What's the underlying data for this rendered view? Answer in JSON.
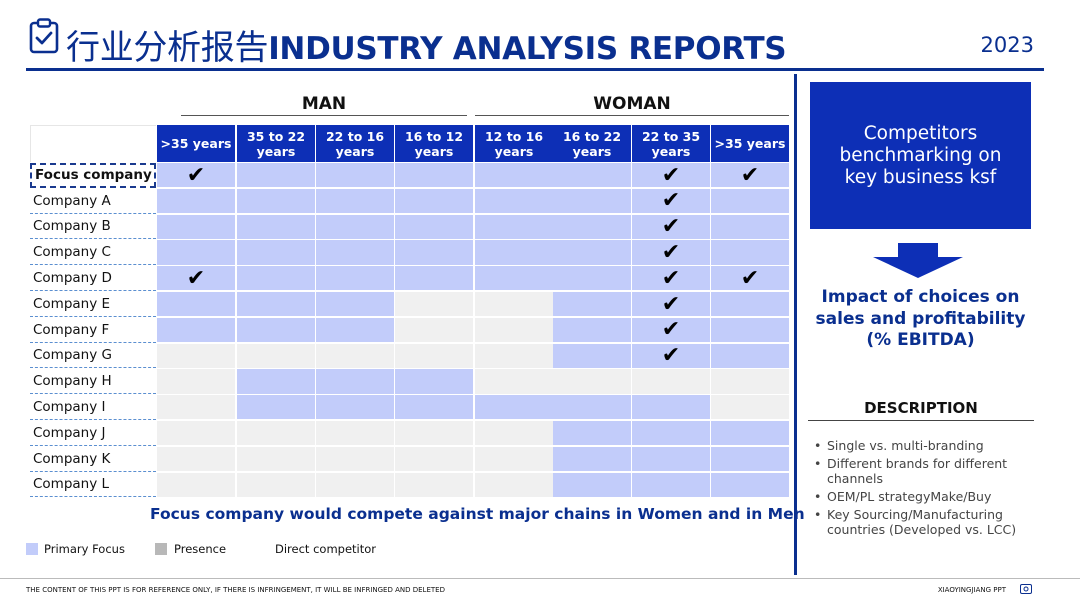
{
  "header": {
    "title_cn": "行业分析报告",
    "title_en": "INDUSTRY ANALYSIS REPORTS",
    "year": "2023"
  },
  "table": {
    "groups": [
      "MAN",
      "WOMAN"
    ],
    "columns": [
      ">35 years",
      "35 to 22 years",
      "22 to 16 years",
      "16 to 12 years",
      "12 to 16 years",
      "16 to 22 years",
      "22 to 35 years",
      ">35 years"
    ],
    "rows": [
      {
        "label": "Focus company name",
        "cells": [
          "P",
          "P",
          "P",
          "P",
          "P",
          "P",
          "P",
          "P"
        ],
        "checks": [
          0,
          6,
          7
        ]
      },
      {
        "label": "Company A",
        "cells": [
          "P",
          "P",
          "P",
          "P",
          "P",
          "P",
          "P",
          "P"
        ],
        "checks": [
          6
        ]
      },
      {
        "label": "Company B",
        "cells": [
          "P",
          "P",
          "P",
          "P",
          "P",
          "P",
          "P",
          "P"
        ],
        "checks": [
          6
        ]
      },
      {
        "label": "Company C",
        "cells": [
          "P",
          "P",
          "P",
          "P",
          "P",
          "P",
          "P",
          "P"
        ],
        "checks": [
          6
        ]
      },
      {
        "label": "Company D",
        "cells": [
          "P",
          "P",
          "P",
          "P",
          "P",
          "P",
          "P",
          "P"
        ],
        "checks": [
          0,
          6,
          7
        ]
      },
      {
        "label": "Company E",
        "cells": [
          "P",
          "P",
          "P",
          "E",
          "E",
          "P",
          "P",
          "P"
        ],
        "checks": [
          6
        ]
      },
      {
        "label": "Company F",
        "cells": [
          "P",
          "P",
          "P",
          "E",
          "E",
          "P",
          "P",
          "P"
        ],
        "checks": [
          6
        ]
      },
      {
        "label": "Company G",
        "cells": [
          "E",
          "E",
          "E",
          "E",
          "E",
          "P",
          "P",
          "P"
        ],
        "checks": [
          6
        ]
      },
      {
        "label": "Company H",
        "cells": [
          "E",
          "P",
          "P",
          "P",
          "E",
          "E",
          "E",
          "E"
        ],
        "checks": []
      },
      {
        "label": "Company I",
        "cells": [
          "E",
          "P",
          "P",
          "P",
          "P",
          "P",
          "P",
          "E"
        ],
        "checks": []
      },
      {
        "label": "Company J",
        "cells": [
          "E",
          "E",
          "E",
          "E",
          "E",
          "P",
          "P",
          "P"
        ],
        "checks": []
      },
      {
        "label": "Company K",
        "cells": [
          "E",
          "E",
          "E",
          "E",
          "E",
          "P",
          "P",
          "P"
        ],
        "checks": []
      },
      {
        "label": "Company L",
        "cells": [
          "E",
          "E",
          "E",
          "E",
          "E",
          "P",
          "P",
          "P"
        ],
        "checks": []
      }
    ],
    "check_symbol": "✔",
    "caption": "Focus company would compete against major chains in Women and in Men"
  },
  "legend": {
    "primary_label": "Primary Focus",
    "presence_label": "Presence",
    "competitor_label": "Direct competitor",
    "primary_color": "#c2ccfa",
    "presence_color": "#b8b8b8"
  },
  "panel": {
    "benchmark": "Competitors benchmarking on key business ksf",
    "impact": "Impact of choices on sales and profitability (% EBITDA)",
    "description_title": "DESCRIPTION",
    "description_items": [
      "Single vs. multi-branding",
      "Different brands for different channels",
      "OEM/PL strategyMake/Buy",
      "Key Sourcing/Manufacturing countries (Developed vs. LCC)"
    ]
  },
  "footer": {
    "disclaimer": "THE CONTENT OF THIS PPT IS FOR REFERENCE ONLY, IF THERE IS INFRINGEMENT, IT WILL BE INFRINGED AND DELETED",
    "brand": "XIAOYINGJIANG PPT"
  },
  "colors": {
    "brand_navy": "#0a2f8f",
    "header_blue": "#0d2fb6"
  }
}
